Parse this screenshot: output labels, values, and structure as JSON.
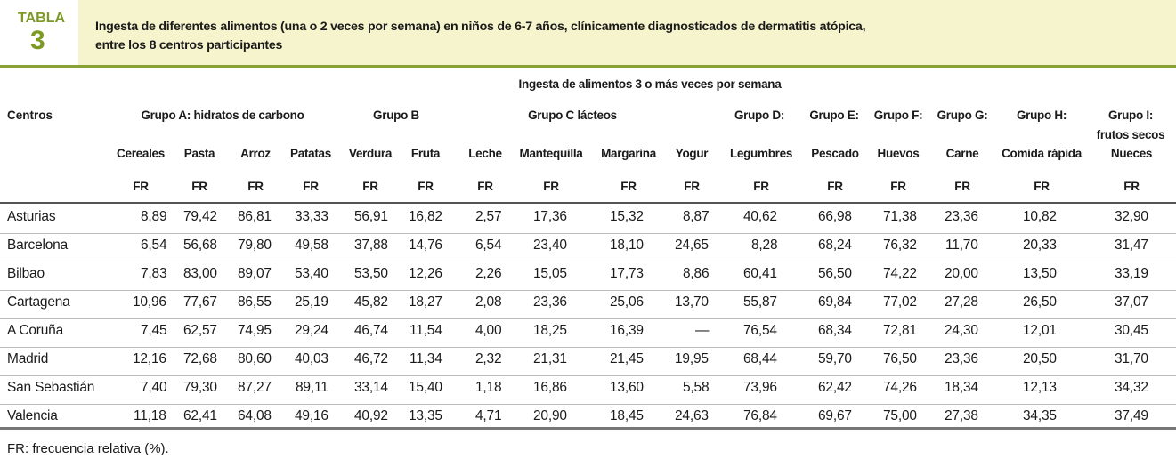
{
  "header": {
    "label": "TABLA",
    "number": "3",
    "title_lines": [
      "Ingesta de diferentes alimentos (una o 2 veces por semana) en niños de 6-7 años, clínicamente diagnosticados de dermatitis atópica,",
      "entre los 8 centros participantes"
    ]
  },
  "table": {
    "super_header": "Ingesta de alimentos 3 o más veces por semana",
    "first_column_header": "Centros",
    "groups": [
      {
        "lines": [
          "Grupo A: hidratos de carbono"
        ]
      },
      {
        "lines": [
          "Grupo B"
        ]
      },
      {
        "lines": [
          "Grupo C lácteos"
        ]
      },
      {
        "lines": [
          "Grupo D:"
        ]
      },
      {
        "lines": [
          "Grupo E:"
        ]
      },
      {
        "lines": [
          "Grupo F:"
        ]
      },
      {
        "lines": [
          "Grupo G:"
        ]
      },
      {
        "lines": [
          "Grupo H:"
        ]
      },
      {
        "lines": [
          "Grupo I:",
          "frutos secos"
        ]
      }
    ],
    "columns": [
      "Cereales",
      "Pasta",
      "Arroz",
      "Patatas",
      "Verdura",
      "Fruta",
      "Leche",
      "Mantequilla",
      "Margarina",
      "Yogur",
      "Legumbres",
      "Pescado",
      "Huevos",
      "Carne",
      "Comida rápida",
      "Nueces"
    ],
    "units": [
      "FR",
      "FR",
      "FR",
      "FR",
      "FR",
      "FR",
      "FR",
      "FR",
      "FR",
      "FR",
      "FR",
      "FR",
      "FR",
      "FR",
      "FR",
      "FR"
    ],
    "rows": [
      [
        "Asturias",
        "8,89",
        "79,42",
        "86,81",
        "33,33",
        "56,91",
        "16,82",
        "2,57",
        "17,36",
        "15,32",
        "8,87",
        "40,62",
        "66,98",
        "71,38",
        "23,36",
        "10,82",
        "32,90"
      ],
      [
        "Barcelona",
        "6,54",
        "56,68",
        "79,80",
        "49,58",
        "37,88",
        "14,76",
        "6,54",
        "23,40",
        "18,10",
        "24,65",
        "8,28",
        "68,24",
        "76,32",
        "11,70",
        "20,33",
        "31,47"
      ],
      [
        "Bilbao",
        "7,83",
        "83,00",
        "89,07",
        "53,40",
        "53,50",
        "12,26",
        "2,26",
        "15,05",
        "17,73",
        "8,86",
        "60,41",
        "56,50",
        "74,22",
        "20,00",
        "13,50",
        "33,19"
      ],
      [
        "Cartagena",
        "10,96",
        "77,67",
        "86,55",
        "25,19",
        "45,82",
        "18,27",
        "2,08",
        "23,36",
        "25,06",
        "13,70",
        "55,87",
        "69,84",
        "77,02",
        "27,28",
        "26,50",
        "37,07"
      ],
      [
        "A Coruña",
        "7,45",
        "62,57",
        "74,95",
        "29,24",
        "46,74",
        "11,54",
        "4,00",
        "18,25",
        "16,39",
        "—",
        "76,54",
        "68,34",
        "72,81",
        "24,30",
        "12,01",
        "30,45"
      ],
      [
        "Madrid",
        "12,16",
        "72,68",
        "80,60",
        "40,03",
        "46,72",
        "11,34",
        "2,32",
        "21,31",
        "21,45",
        "19,95",
        "68,44",
        "59,70",
        "76,50",
        "23,36",
        "20,50",
        "31,70"
      ],
      [
        "San Sebastián",
        "7,40",
        "79,30",
        "87,27",
        "89,11",
        "33,14",
        "15,40",
        "1,18",
        "16,86",
        "13,60",
        "5,58",
        "73,96",
        "62,42",
        "74,26",
        "18,34",
        "12,13",
        "34,32"
      ],
      [
        "Valencia",
        "11,18",
        "62,41",
        "64,08",
        "49,16",
        "40,92",
        "13,35",
        "4,71",
        "20,90",
        "18,45",
        "24,63",
        "76,84",
        "69,67",
        "75,00",
        "27,38",
        "34,35",
        "37,49"
      ]
    ]
  },
  "footnote": "FR: frecuencia relativa (%)."
}
